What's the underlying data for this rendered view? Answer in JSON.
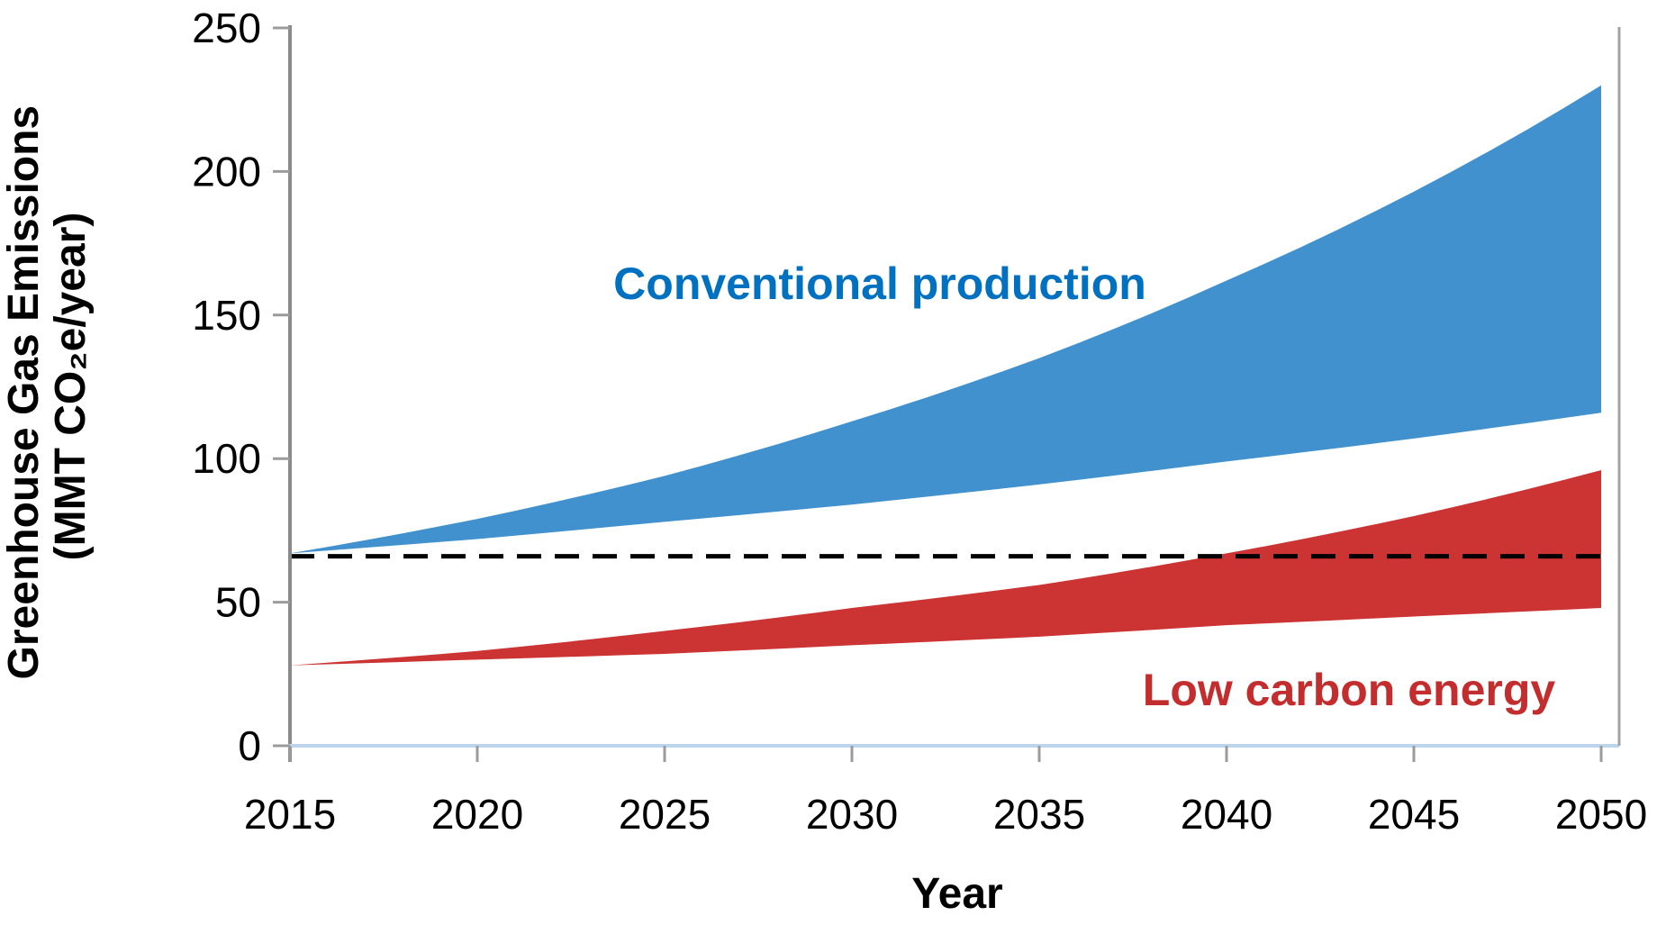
{
  "chart_data": {
    "type": "area",
    "title": "",
    "xlabel": "Year",
    "ylabel": "Greenhouse Gas Emissions (MMT CO₂e/year)",
    "ylabel_lines": [
      "Greenhouse Gas Emissions",
      "(MMT CO₂e/year)"
    ],
    "x": [
      2015,
      2020,
      2025,
      2030,
      2035,
      2040,
      2045,
      2050
    ],
    "x_tick_labels": [
      "2015",
      "2020",
      "2025",
      "2030",
      "2035",
      "2040",
      "2045",
      "2050"
    ],
    "y_ticks": [
      0,
      50,
      100,
      150,
      200,
      250
    ],
    "ylim": [
      0,
      250
    ],
    "xlim": [
      2015,
      2050
    ],
    "grid": false,
    "legend_position": "inline-labels",
    "series": [
      {
        "id": "conventional-production",
        "name": "Conventional production",
        "band_color": "#4191CE",
        "label_color": "#0070C0",
        "upper": [
          67,
          79,
          94,
          113,
          135,
          162,
          193,
          230
        ],
        "lower": [
          67,
          72,
          78,
          84,
          91,
          99,
          107,
          116
        ]
      },
      {
        "id": "low-carbon-energy",
        "name": "Low carbon energy",
        "band_color": "#CC3333",
        "label_color": "#C32D2D",
        "upper": [
          28,
          33,
          40,
          48,
          56,
          67,
          80,
          96
        ],
        "lower": [
          28,
          30,
          32,
          35,
          38,
          42,
          45,
          48
        ]
      }
    ],
    "reference_line": {
      "value": 66,
      "style": "dashed",
      "color": "#000000"
    },
    "axis": {
      "y_axis_color": "#8A8A8A",
      "x_axis_color": "#BDD5EB",
      "tick_color": "#9B9B9B",
      "right_border_color": "#A3A3A3",
      "tick_label_color": "#000000"
    }
  }
}
